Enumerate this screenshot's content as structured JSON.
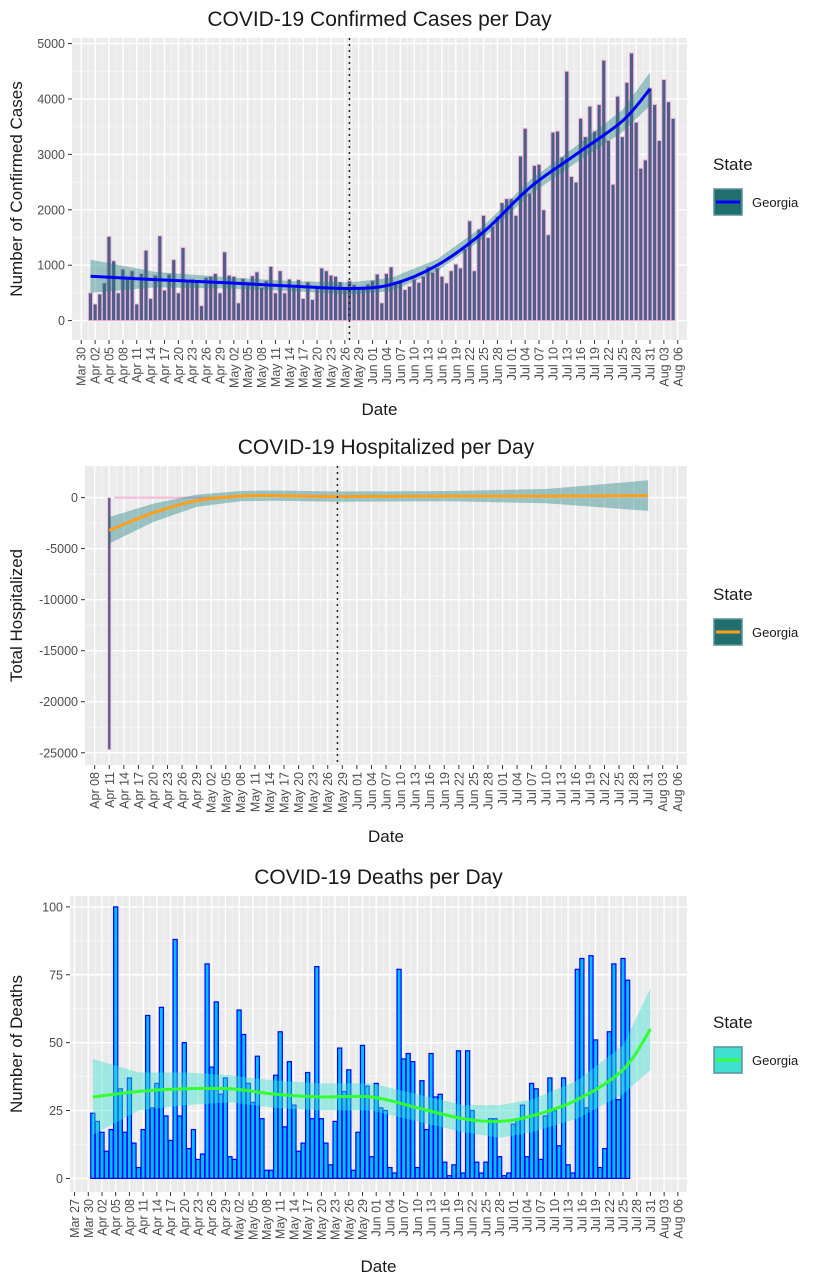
{
  "chart_data": [
    {
      "type": "bar",
      "title": "COVID-19 Confirmed Cases per Day",
      "xlabel": "Date",
      "ylabel": "Number of Confirmed Cases",
      "xlim": [
        "2020-03-28",
        "2020-08-08"
      ],
      "ylim": [
        -350,
        5100
      ],
      "yticks": [
        0,
        1000,
        2000,
        3000,
        4000,
        5000
      ],
      "xticks": [
        "2020-03-30",
        "2020-04-02",
        "2020-04-05",
        "2020-04-08",
        "2020-04-11",
        "2020-04-14",
        "2020-04-17",
        "2020-04-20",
        "2020-04-23",
        "2020-04-26",
        "2020-04-29",
        "2020-05-02",
        "2020-05-05",
        "2020-05-08",
        "2020-05-11",
        "2020-05-14",
        "2020-05-17",
        "2020-05-20",
        "2020-05-23",
        "2020-05-26",
        "2020-05-29",
        "2020-06-01",
        "2020-06-04",
        "2020-06-07",
        "2020-06-10",
        "2020-06-13",
        "2020-06-16",
        "2020-06-19",
        "2020-06-22",
        "2020-06-25",
        "2020-06-28",
        "2020-07-01",
        "2020-07-04",
        "2020-07-07",
        "2020-07-10",
        "2020-07-13",
        "2020-07-16",
        "2020-07-19",
        "2020-07-22",
        "2020-07-25",
        "2020-07-28",
        "2020-07-31",
        "2020-08-03",
        "2020-08-06"
      ],
      "xticklabels": [
        "Mar 30",
        "Apr 02",
        "Apr 05",
        "Apr 08",
        "Apr 11",
        "Apr 14",
        "Apr 17",
        "Apr 20",
        "Apr 23",
        "Apr 26",
        "Apr 29",
        "May 02",
        "May 05",
        "May 08",
        "May 11",
        "May 14",
        "May 17",
        "May 20",
        "May 23",
        "May 26",
        "May 29",
        "Jun 01",
        "Jun 04",
        "Jun 07",
        "Jun 10",
        "Jun 13",
        "Jun 16",
        "Jun 19",
        "Jun 22",
        "Jun 25",
        "Jun 28",
        "Jul 01",
        "Jul 04",
        "Jul 07",
        "Jul 10",
        "Jul 13",
        "Jul 16",
        "Jul 19",
        "Jul 22",
        "Jul 25",
        "Jul 28",
        "Jul 31",
        "Aug 03",
        "Aug 06"
      ],
      "vline": "2020-05-27",
      "x_start": "2020-04-01",
      "values": [
        500,
        300,
        480,
        680,
        1520,
        1080,
        500,
        930,
        800,
        900,
        300,
        850,
        1270,
        400,
        820,
        1530,
        550,
        840,
        1100,
        500,
        1320,
        700,
        750,
        700,
        270,
        780,
        800,
        850,
        500,
        1240,
        820,
        800,
        320,
        760,
        700,
        810,
        880,
        600,
        720,
        980,
        500,
        900,
        500,
        750,
        600,
        740,
        400,
        700,
        380,
        600,
        950,
        900,
        820,
        800,
        700,
        580,
        720,
        650,
        560,
        600,
        660,
        720,
        840,
        320,
        850,
        970,
        700,
        700,
        560,
        620,
        750,
        690,
        800,
        970,
        870,
        950,
        800,
        680,
        900,
        1020,
        950,
        1300,
        1800,
        900,
        1650,
        1900,
        1500,
        1700,
        1880,
        2130,
        2200,
        2200,
        1900,
        2970,
        3470,
        2300,
        2800,
        2820,
        2000,
        1550,
        3400,
        3420,
        2950,
        4500,
        2600,
        2500,
        3650,
        3320,
        3870,
        3420,
        3900,
        4700,
        3250,
        2460,
        4050,
        3320,
        4300,
        4830,
        3580,
        2750,
        2900,
        4200,
        3900,
        3250,
        4350,
        3950,
        3650
      ]
    },
    {
      "type": "bar",
      "title": "COVID-19 Hospitalized per Day",
      "xlabel": "Date",
      "ylabel": "Total Hospitalized",
      "xlim": [
        "2020-04-06",
        "2020-08-08"
      ],
      "ylim": [
        -26200,
        3100
      ],
      "yticks": [
        0,
        -5000,
        -10000,
        -15000,
        -20000,
        -25000
      ],
      "xticks": [
        "2020-04-08",
        "2020-04-11",
        "2020-04-14",
        "2020-04-17",
        "2020-04-20",
        "2020-04-23",
        "2020-04-26",
        "2020-04-29",
        "2020-05-02",
        "2020-05-05",
        "2020-05-08",
        "2020-05-11",
        "2020-05-14",
        "2020-05-17",
        "2020-05-20",
        "2020-05-23",
        "2020-05-26",
        "2020-05-29",
        "2020-06-01",
        "2020-06-04",
        "2020-06-07",
        "2020-06-10",
        "2020-06-13",
        "2020-06-16",
        "2020-06-19",
        "2020-06-22",
        "2020-06-25",
        "2020-06-28",
        "2020-07-01",
        "2020-07-04",
        "2020-07-07",
        "2020-07-10",
        "2020-07-13",
        "2020-07-16",
        "2020-07-19",
        "2020-07-22",
        "2020-07-25",
        "2020-07-28",
        "2020-07-31",
        "2020-08-03",
        "2020-08-06"
      ],
      "xticklabels": [
        "Apr 08",
        "Apr 11",
        "Apr 14",
        "Apr 17",
        "Apr 20",
        "Apr 23",
        "Apr 26",
        "Apr 29",
        "May 02",
        "May 05",
        "May 08",
        "May 11",
        "May 14",
        "May 17",
        "May 20",
        "May 23",
        "May 26",
        "May 29",
        "Jun 01",
        "Jun 04",
        "Jun 07",
        "Jun 10",
        "Jun 13",
        "Jun 16",
        "Jun 19",
        "Jun 22",
        "Jun 25",
        "Jun 28",
        "Jul 01",
        "Jul 04",
        "Jul 07",
        "Jul 10",
        "Jul 13",
        "Jul 16",
        "Jul 19",
        "Jul 22",
        "Jul 25",
        "Jul 28",
        "Jul 31",
        "Aug 03",
        "Aug 06"
      ],
      "vline": "2020-05-28",
      "bars": [
        {
          "x": "2020-04-11",
          "y": -24700
        }
      ],
      "smooth_line": [
        [
          "2020-04-11",
          -3200
        ],
        [
          "2020-04-20",
          -1500
        ],
        [
          "2020-04-29",
          -300
        ],
        [
          "2020-05-08",
          150
        ],
        [
          "2020-05-15",
          200
        ],
        [
          "2020-05-28",
          100
        ],
        [
          "2020-06-20",
          150
        ],
        [
          "2020-07-10",
          150
        ],
        [
          "2020-07-31",
          200
        ]
      ]
    },
    {
      "type": "bar",
      "title": "COVID-19 Deaths per Day",
      "xlabel": "Date",
      "ylabel": "Number of Deaths",
      "xlim": [
        "2020-03-26",
        "2020-08-08"
      ],
      "ylim": [
        -5,
        104
      ],
      "yticks": [
        0,
        25,
        50,
        75,
        100
      ],
      "xticks": [
        "2020-03-27",
        "2020-03-30",
        "2020-04-02",
        "2020-04-05",
        "2020-04-08",
        "2020-04-11",
        "2020-04-14",
        "2020-04-17",
        "2020-04-20",
        "2020-04-23",
        "2020-04-26",
        "2020-04-29",
        "2020-05-02",
        "2020-05-05",
        "2020-05-08",
        "2020-05-11",
        "2020-05-14",
        "2020-05-17",
        "2020-05-20",
        "2020-05-23",
        "2020-05-26",
        "2020-05-29",
        "2020-06-01",
        "2020-06-04",
        "2020-06-07",
        "2020-06-10",
        "2020-06-13",
        "2020-06-16",
        "2020-06-19",
        "2020-06-22",
        "2020-06-25",
        "2020-06-28",
        "2020-07-01",
        "2020-07-04",
        "2020-07-07",
        "2020-07-10",
        "2020-07-13",
        "2020-07-16",
        "2020-07-19",
        "2020-07-22",
        "2020-07-25",
        "2020-07-28",
        "2020-07-31",
        "2020-08-03",
        "2020-08-06"
      ],
      "xticklabels": [
        "Mar 27",
        "Mar 30",
        "Apr 02",
        "Apr 05",
        "Apr 08",
        "Apr 11",
        "Apr 14",
        "Apr 17",
        "Apr 20",
        "Apr 23",
        "Apr 26",
        "Apr 29",
        "May 02",
        "May 05",
        "May 08",
        "May 11",
        "May 14",
        "May 17",
        "May 20",
        "May 23",
        "May 26",
        "May 29",
        "Jun 01",
        "Jun 04",
        "Jun 07",
        "Jun 10",
        "Jun 13",
        "Jun 16",
        "Jun 19",
        "Jun 22",
        "Jun 25",
        "Jun 28",
        "Jul 01",
        "Jul 04",
        "Jul 07",
        "Jul 10",
        "Jul 13",
        "Jul 16",
        "Jul 19",
        "Jul 22",
        "Jul 25",
        "Jul 28",
        "Jul 31",
        "Aug 03",
        "Aug 06"
      ],
      "x_start": "2020-03-31",
      "values": [
        24,
        21,
        17,
        10,
        18,
        100,
        33,
        17,
        37,
        13,
        4,
        18,
        60,
        26,
        35,
        63,
        23,
        14,
        88,
        23,
        50,
        11,
        18,
        7,
        9,
        79,
        41,
        65,
        31,
        37,
        8,
        7,
        62,
        53,
        35,
        28,
        45,
        22,
        3,
        3,
        38,
        54,
        19,
        43,
        27,
        10,
        13,
        39,
        22,
        78,
        22,
        13,
        5,
        21,
        48,
        32,
        40,
        3,
        17,
        49,
        34,
        8,
        35,
        26,
        25,
        4,
        2,
        77,
        44,
        46,
        43,
        4,
        36,
        18,
        46,
        30,
        31,
        6,
        1,
        5,
        47,
        2,
        47,
        25,
        6,
        2,
        6,
        22,
        22,
        8,
        1,
        2,
        20,
        22,
        27,
        8,
        35,
        33,
        7,
        23,
        37,
        25,
        12,
        37,
        5,
        2,
        77,
        81,
        26,
        82,
        51,
        4,
        11,
        54,
        79,
        29,
        81,
        73
      ],
      "smooth_line": [
        [
          "2020-03-31",
          30
        ],
        [
          "2020-04-10",
          32
        ],
        [
          "2020-04-20",
          33
        ],
        [
          "2020-04-30",
          33
        ],
        [
          "2020-05-10",
          31
        ],
        [
          "2020-05-20",
          30
        ],
        [
          "2020-05-31",
          30
        ],
        [
          "2020-06-10",
          26
        ],
        [
          "2020-06-20",
          22
        ],
        [
          "2020-06-28",
          21
        ],
        [
          "2020-07-05",
          23
        ],
        [
          "2020-07-15",
          29
        ],
        [
          "2020-07-25",
          40
        ],
        [
          "2020-07-31",
          55
        ]
      ]
    }
  ],
  "legend": {
    "title": "State",
    "label": "Georgia"
  },
  "colors": {
    "panel": "#ebebeb",
    "cases_bar_fill": "#4a5f8c",
    "cases_bar_outline": "#f5b8d5",
    "cases_line": "#0000ff",
    "hosp_bar_fill": "#4a5f8c",
    "hosp_bar_outline": "#f5b8d5",
    "hosp_line": "#ff9f1c",
    "ribbon": "#1f7f7f",
    "legend_key_fill": "#1f6f6f",
    "deaths_bar_fill": "#00bfff",
    "deaths_bar_outline": "#0000ff",
    "deaths_line": "#33ff33",
    "deaths_ribbon": "#40e0d0"
  }
}
